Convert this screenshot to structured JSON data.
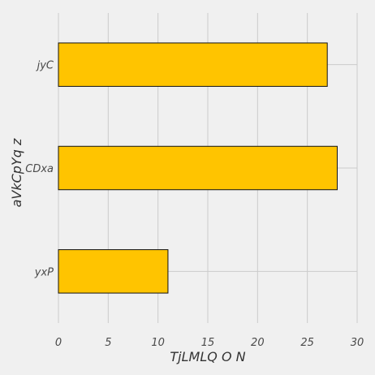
{
  "chart_data": {
    "type": "bar",
    "orientation": "horizontal",
    "title": "",
    "xlabel": "TjLMLQ O N",
    "ylabel": "aVkCpYq z",
    "categories": [
      "jyC",
      "CDxa",
      "yxP"
    ],
    "values": [
      27,
      28,
      11
    ],
    "xlim": [
      0,
      30
    ],
    "xticks": [
      0,
      5,
      10,
      15,
      20,
      25,
      30
    ],
    "grid": true,
    "legend": "none",
    "colors": {
      "bar_fill": "#ffc400",
      "bar_edge": "#111111",
      "grid": "#cbcbcb",
      "background": "#f0f0f0"
    }
  }
}
